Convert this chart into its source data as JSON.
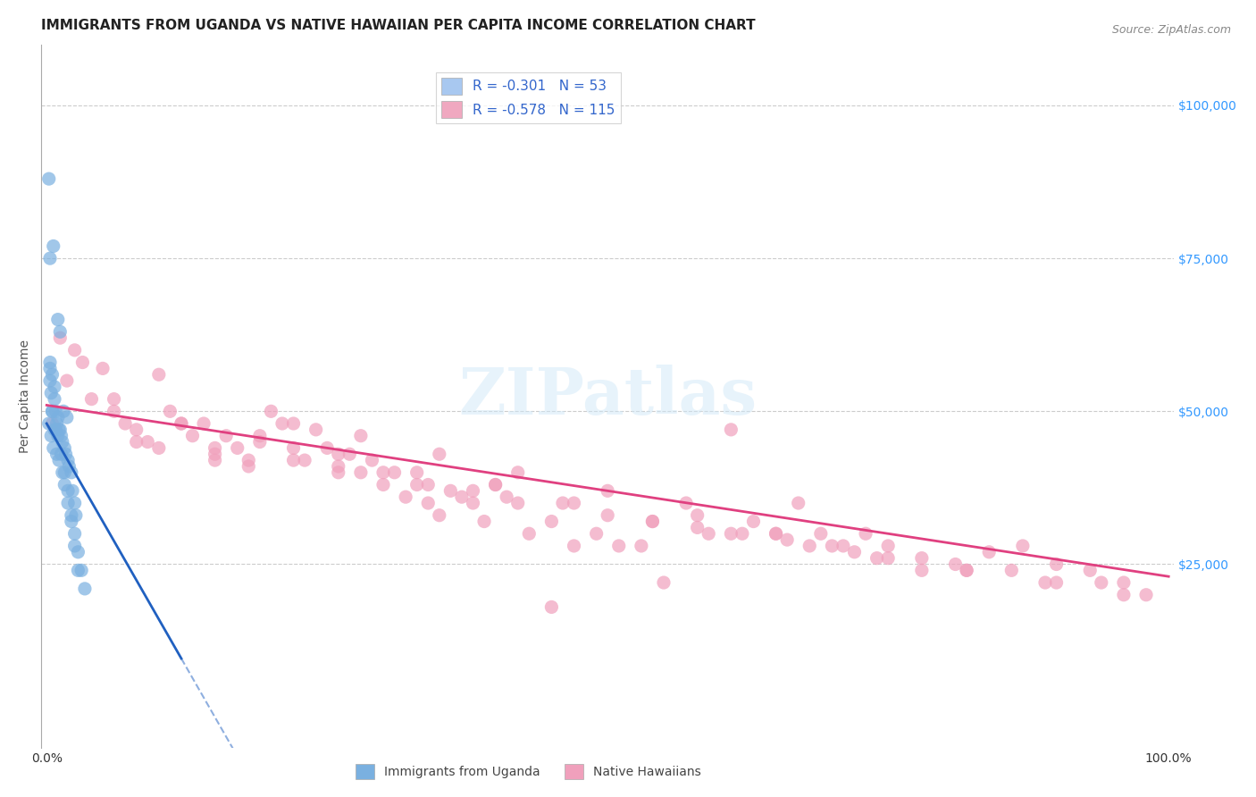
{
  "title": "IMMIGRANTS FROM UGANDA VS NATIVE HAWAIIAN PER CAPITA INCOME CORRELATION CHART",
  "source": "Source: ZipAtlas.com",
  "xlabel": "",
  "ylabel": "Per Capita Income",
  "right_ytick_labels": [
    "$25,000",
    "$50,000",
    "$75,000",
    "$100,000"
  ],
  "right_ytick_values": [
    25000,
    50000,
    75000,
    100000
  ],
  "xlim": [
    -0.005,
    1.005
  ],
  "ylim": [
    -5000,
    110000
  ],
  "xtick_labels": [
    "0.0%",
    "100.0%"
  ],
  "xtick_values": [
    0.0,
    1.0
  ],
  "legend_entries": [
    {
      "label": "R = -0.301   N = 53",
      "color": "#a8c8f0"
    },
    {
      "label": "R = -0.578   N = 115",
      "color": "#f0a8c0"
    }
  ],
  "watermark": "ZIPatlas",
  "title_fontsize": 11,
  "axis_label_fontsize": 10,
  "background_color": "#ffffff",
  "grid_color": "#cccccc",
  "blue_scatter_color": "#7ab0e0",
  "pink_scatter_color": "#f0a0bc",
  "blue_line_color": "#2060c0",
  "pink_line_color": "#e04080",
  "blue_line_intercept": 48000,
  "blue_line_slope": -320000,
  "pink_line_intercept": 51000,
  "pink_line_slope": -28000,
  "blue_scatter_x": [
    0.002,
    0.005,
    0.008,
    0.003,
    0.006,
    0.01,
    0.012,
    0.015,
    0.018,
    0.003,
    0.004,
    0.007,
    0.009,
    0.011,
    0.013,
    0.016,
    0.019,
    0.022,
    0.025,
    0.003,
    0.005,
    0.007,
    0.008,
    0.01,
    0.012,
    0.014,
    0.017,
    0.02,
    0.023,
    0.026,
    0.002,
    0.004,
    0.006,
    0.009,
    0.011,
    0.014,
    0.016,
    0.019,
    0.022,
    0.025,
    0.028,
    0.003,
    0.005,
    0.007,
    0.01,
    0.013,
    0.016,
    0.019,
    0.022,
    0.025,
    0.028,
    0.031,
    0.034
  ],
  "blue_scatter_y": [
    88000,
    50000,
    47000,
    75000,
    77000,
    65000,
    63000,
    50000,
    49000,
    55000,
    53000,
    52000,
    48000,
    47000,
    46000,
    44000,
    42000,
    40000,
    35000,
    57000,
    56000,
    54000,
    50000,
    49000,
    47000,
    45000,
    43000,
    41000,
    37000,
    33000,
    48000,
    46000,
    44000,
    43000,
    42000,
    40000,
    38000,
    35000,
    32000,
    28000,
    24000,
    58000,
    50000,
    47000,
    46000,
    43000,
    40000,
    37000,
    33000,
    30000,
    27000,
    24000,
    21000
  ],
  "pink_scatter_x": [
    0.005,
    0.012,
    0.018,
    0.025,
    0.032,
    0.04,
    0.05,
    0.06,
    0.07,
    0.08,
    0.09,
    0.1,
    0.11,
    0.12,
    0.13,
    0.14,
    0.15,
    0.16,
    0.17,
    0.18,
    0.19,
    0.2,
    0.21,
    0.22,
    0.23,
    0.24,
    0.25,
    0.26,
    0.27,
    0.28,
    0.29,
    0.3,
    0.31,
    0.32,
    0.33,
    0.34,
    0.35,
    0.36,
    0.37,
    0.38,
    0.39,
    0.4,
    0.41,
    0.43,
    0.45,
    0.47,
    0.49,
    0.51,
    0.53,
    0.55,
    0.57,
    0.59,
    0.61,
    0.63,
    0.65,
    0.67,
    0.69,
    0.71,
    0.73,
    0.75,
    0.78,
    0.81,
    0.84,
    0.87,
    0.9,
    0.93,
    0.96,
    0.15,
    0.22,
    0.28,
    0.35,
    0.42,
    0.5,
    0.58,
    0.65,
    0.72,
    0.08,
    0.15,
    0.22,
    0.3,
    0.38,
    0.46,
    0.54,
    0.62,
    0.7,
    0.78,
    0.86,
    0.94,
    0.1,
    0.18,
    0.26,
    0.34,
    0.42,
    0.5,
    0.58,
    0.66,
    0.74,
    0.82,
    0.9,
    0.98,
    0.06,
    0.12,
    0.19,
    0.26,
    0.33,
    0.4,
    0.47,
    0.54,
    0.61,
    0.68,
    0.75,
    0.82,
    0.89,
    0.96,
    0.45
  ],
  "pink_scatter_y": [
    48000,
    62000,
    55000,
    60000,
    58000,
    52000,
    57000,
    50000,
    48000,
    47000,
    45000,
    56000,
    50000,
    48000,
    46000,
    48000,
    44000,
    46000,
    44000,
    42000,
    45000,
    50000,
    48000,
    44000,
    42000,
    47000,
    44000,
    41000,
    43000,
    40000,
    42000,
    38000,
    40000,
    36000,
    38000,
    35000,
    33000,
    37000,
    36000,
    35000,
    32000,
    38000,
    36000,
    30000,
    32000,
    28000,
    30000,
    28000,
    28000,
    22000,
    35000,
    30000,
    47000,
    32000,
    30000,
    35000,
    30000,
    28000,
    30000,
    28000,
    24000,
    25000,
    27000,
    28000,
    25000,
    24000,
    22000,
    43000,
    48000,
    46000,
    43000,
    40000,
    37000,
    33000,
    30000,
    27000,
    45000,
    42000,
    42000,
    40000,
    37000,
    35000,
    32000,
    30000,
    28000,
    26000,
    24000,
    22000,
    44000,
    41000,
    40000,
    38000,
    35000,
    33000,
    31000,
    29000,
    26000,
    24000,
    22000,
    20000,
    52000,
    48000,
    46000,
    43000,
    40000,
    38000,
    35000,
    32000,
    30000,
    28000,
    26000,
    24000,
    22000,
    20000,
    18000
  ]
}
